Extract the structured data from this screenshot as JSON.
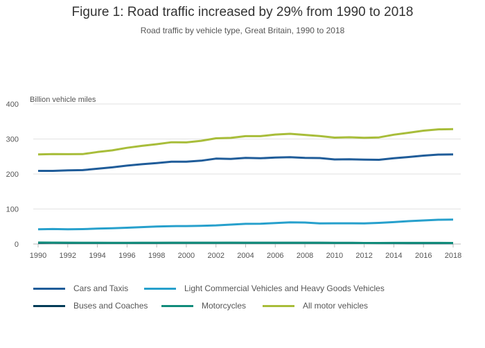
{
  "chart_data": {
    "type": "line",
    "title": "Figure 1: Road traffic increased by 29% from 1990 to 2018",
    "subtitle": "Road traffic by vehicle type, Great Britain, 1990 to 2018",
    "ylabel": "Billion vehicle miles",
    "xlabel": "",
    "ylim": [
      0,
      400
    ],
    "yticks": [
      "0",
      "100",
      "200",
      "300",
      "400"
    ],
    "xticks": [
      "1990",
      "1992",
      "1994",
      "1996",
      "1998",
      "2000",
      "2002",
      "2004",
      "2006",
      "2008",
      "2010",
      "2012",
      "2014",
      "2016",
      "2018"
    ],
    "x": [
      1990,
      1991,
      1992,
      1993,
      1994,
      1995,
      1996,
      1997,
      1998,
      1999,
      2000,
      2001,
      2002,
      2003,
      2004,
      2005,
      2006,
      2007,
      2008,
      2009,
      2010,
      2011,
      2012,
      2013,
      2014,
      2015,
      2016,
      2017,
      2018
    ],
    "grid": true,
    "legend": "bottom",
    "series": [
      {
        "name": "Cars and Taxis",
        "color": "#1f5c99",
        "values": [
          209,
          209,
          210.5,
          211,
          215,
          219,
          224,
          228,
          231,
          235,
          235,
          238,
          244,
          243,
          246,
          245,
          247,
          248,
          246,
          245.5,
          241.5,
          242,
          241,
          240.5,
          245,
          248.5,
          252.5,
          255.5,
          256
        ]
      },
      {
        "name": "Light Commercial Vehicles and Heavy Goods Vehicles",
        "color": "#27a0cc",
        "values": [
          42,
          42.8,
          42,
          42.5,
          44,
          45,
          46.6,
          48.3,
          50,
          51,
          51.3,
          52,
          53.2,
          55.4,
          57.6,
          58,
          59.9,
          62,
          61.4,
          58.9,
          59.2,
          59.3,
          59,
          60.3,
          62.6,
          65.3,
          67.4,
          69.3,
          69.9
        ]
      },
      {
        "name": "Buses and Coaches",
        "color": "#003c57",
        "values": [
          3.2,
          3.3,
          3.2,
          3.1,
          3.1,
          3.1,
          3.1,
          3.2,
          3.2,
          3.3,
          3.3,
          3.3,
          3.3,
          3.4,
          3.4,
          3.3,
          3.3,
          3.3,
          3.4,
          3.3,
          3.2,
          3.1,
          3.0,
          2.8,
          2.7,
          2.6,
          2.6,
          2.6,
          2.5
        ]
      },
      {
        "name": "Motorcycles",
        "color": "#118c7b",
        "values": [
          4.1,
          4.0,
          3.7,
          3.5,
          3.3,
          3.2,
          3.2,
          3.3,
          3.4,
          3.6,
          3.6,
          3.6,
          3.6,
          3.8,
          3.5,
          3.5,
          3.5,
          3.6,
          3.4,
          3.5,
          3.2,
          3.2,
          3.0,
          2.9,
          3.1,
          3.1,
          3.1,
          3.1,
          2.9
        ]
      },
      {
        "name": "All motor vehicles",
        "color": "#a8bd3a",
        "values": [
          255.9,
          256.9,
          256.7,
          256.9,
          262.7,
          267.6,
          274.8,
          280.3,
          285.1,
          290.6,
          290.3,
          294.8,
          301.9,
          303.1,
          308.1,
          308.1,
          312.7,
          314.8,
          311.7,
          308.6,
          303.9,
          304.9,
          303.6,
          304.5,
          312.2,
          317.9,
          323.7,
          327.6,
          328.1
        ]
      }
    ]
  }
}
